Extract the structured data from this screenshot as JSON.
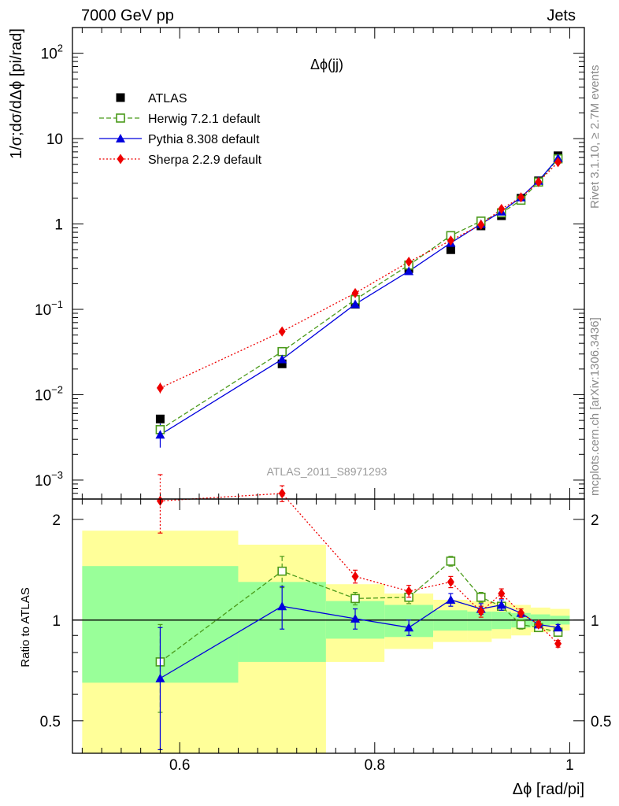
{
  "header": {
    "left": "7000 GeV pp",
    "right": "Jets"
  },
  "side_labels": {
    "rivet": "Rivet 3.1.10, ≥ 2.7M events",
    "mcplots": "mcplots.cern.ch [arXiv:1306.3436]"
  },
  "chart_data": [
    {
      "type": "line",
      "title": "Δϕ(jj)",
      "ylabel": "1/σ;dσ/dΔϕ [pi/rad]",
      "watermark": "ATLAS_2011_S8971293",
      "y_scale": "log",
      "xlim": [
        0.49,
        1.015
      ],
      "ylim": [
        0.0006,
        200
      ],
      "y_ticks": [
        {
          "value": 0.001,
          "base": "10",
          "exp": "−3"
        },
        {
          "value": 0.01,
          "base": "10",
          "exp": "−2"
        },
        {
          "value": 0.1,
          "base": "10",
          "exp": "−1"
        },
        {
          "value": 1,
          "label": "1"
        },
        {
          "value": 10,
          "label": "10"
        },
        {
          "value": 100,
          "base": "10",
          "exp": "2"
        }
      ],
      "legend_position": "top-left",
      "x": [
        0.58,
        0.705,
        0.78,
        0.835,
        0.878,
        0.909,
        0.93,
        0.95,
        0.968,
        0.988
      ],
      "series": [
        {
          "name": "ATLAS",
          "color": "#000000",
          "marker": "square-filled",
          "line": "none",
          "values": [
            0.0052,
            0.023,
            0.115,
            0.3,
            0.5,
            0.95,
            1.25,
            2.0,
            3.2,
            6.3
          ]
        },
        {
          "name": "Herwig 7.2.1 default",
          "color": "#4a9a1a",
          "marker": "square-open",
          "line": "dashed",
          "values": [
            0.0039,
            0.032,
            0.13,
            0.33,
            0.73,
            1.08,
            1.35,
            1.9,
            3.1,
            5.8
          ]
        },
        {
          "name": "Pythia 8.308 default",
          "color": "#0000dd",
          "marker": "triangle-filled",
          "line": "solid",
          "values": [
            0.0034,
            0.026,
            0.115,
            0.28,
            0.6,
            1.0,
            1.4,
            2.05,
            3.2,
            5.9
          ]
        },
        {
          "name": "Sherpa 2.2.9 default",
          "color": "#ee0000",
          "marker": "diamond-filled",
          "line": "dotted",
          "values": [
            0.012,
            0.055,
            0.155,
            0.36,
            0.64,
            0.98,
            1.5,
            2.05,
            3.1,
            5.3
          ]
        }
      ]
    },
    {
      "type": "line",
      "xlabel": "Δϕ [rad/pi]",
      "ylabel": "Ratio to ATLAS",
      "xlim": [
        0.49,
        1.015
      ],
      "ylim": [
        0.4,
        2.3
      ],
      "x_ticks": [
        0.6,
        0.8,
        1
      ],
      "y_ticks": [
        0.5,
        1,
        2
      ],
      "uncertainty_bands": {
        "colors": {
          "inner": "#99ff99",
          "outer": "#ffff99"
        },
        "bins": [
          {
            "x0": 0.5,
            "x1": 0.66,
            "inner": [
              0.65,
              1.45
            ],
            "outer": [
              0.1,
              1.85
            ]
          },
          {
            "x0": 0.66,
            "x1": 0.75,
            "inner": [
              0.75,
              1.3
            ],
            "outer": [
              0.37,
              1.68
            ]
          },
          {
            "x0": 0.75,
            "x1": 0.81,
            "inner": [
              0.88,
              1.14
            ],
            "outer": [
              0.75,
              1.28
            ]
          },
          {
            "x0": 0.81,
            "x1": 0.86,
            "inner": [
              0.89,
              1.11
            ],
            "outer": [
              0.82,
              1.2
            ]
          },
          {
            "x0": 0.86,
            "x1": 0.895,
            "inner": [
              0.93,
              1.07
            ],
            "outer": [
              0.86,
              1.15
            ]
          },
          {
            "x0": 0.895,
            "x1": 0.92,
            "inner": [
              0.93,
              1.06
            ],
            "outer": [
              0.86,
              1.14
            ]
          },
          {
            "x0": 0.92,
            "x1": 0.94,
            "inner": [
              0.94,
              1.06
            ],
            "outer": [
              0.88,
              1.13
            ]
          },
          {
            "x0": 0.94,
            "x1": 0.96,
            "inner": [
              0.95,
              1.05
            ],
            "outer": [
              0.9,
              1.11
            ]
          },
          {
            "x0": 0.96,
            "x1": 0.98,
            "inner": [
              0.96,
              1.04
            ],
            "outer": [
              0.92,
              1.09
            ]
          },
          {
            "x0": 0.98,
            "x1": 1.0,
            "inner": [
              0.97,
              1.03
            ],
            "outer": [
              0.93,
              1.08
            ]
          }
        ]
      },
      "x": [
        0.58,
        0.705,
        0.78,
        0.835,
        0.878,
        0.909,
        0.93,
        0.95,
        0.968,
        0.988
      ],
      "series": [
        {
          "name": "Herwig 7.2.1 default",
          "color": "#4a9a1a",
          "values": [
            0.75,
            1.4,
            1.16,
            1.17,
            1.5,
            1.17,
            1.1,
            0.97,
            0.95,
            0.92
          ],
          "err": [
            0.22,
            0.15,
            0.05,
            0.05,
            0.05,
            0.04,
            0.03,
            0.03,
            0.02,
            0.02
          ]
        },
        {
          "name": "Pythia 8.308 default",
          "color": "#0000dd",
          "values": [
            0.67,
            1.1,
            1.01,
            0.95,
            1.15,
            1.08,
            1.11,
            1.05,
            0.97,
            0.95
          ],
          "err": [
            0.28,
            0.16,
            0.07,
            0.05,
            0.05,
            0.04,
            0.04,
            0.03,
            0.02,
            0.02
          ]
        },
        {
          "name": "Sherpa 2.2.9 default",
          "color": "#ee0000",
          "values": [
            2.27,
            2.39,
            1.35,
            1.22,
            1.3,
            1.06,
            1.2,
            1.05,
            0.97,
            0.85
          ],
          "err": [
            0.45,
            0.13,
            0.06,
            0.05,
            0.05,
            0.04,
            0.04,
            0.03,
            0.02,
            0.02
          ]
        }
      ]
    }
  ]
}
